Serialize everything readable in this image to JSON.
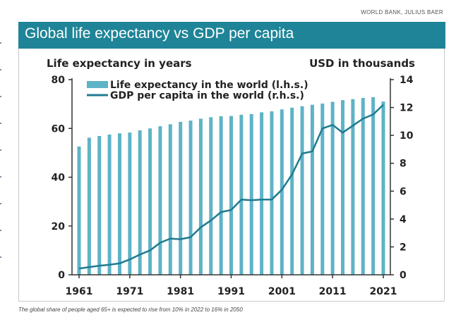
{
  "source": "WORLD BANK, JULIUS BAER",
  "header": {
    "title": "Global life expectancy vs GDP per capita"
  },
  "caption": "The global share of people aged 65+ is expected to rise from 10% in 2022 to 16% in 2050",
  "colors": {
    "banner": "#1f8497",
    "bars": "#5fb3c6",
    "line": "#1f7b91"
  },
  "chart_data": {
    "type": "bar",
    "title": "",
    "ylabel_left": "Life expectancy in years",
    "ylabel_right": "USD in thousands",
    "x": [
      1961,
      1963,
      1965,
      1967,
      1969,
      1971,
      1973,
      1975,
      1977,
      1979,
      1981,
      1983,
      1985,
      1987,
      1989,
      1991,
      1993,
      1995,
      1997,
      1999,
      2001,
      2003,
      2005,
      2007,
      2009,
      2011,
      2013,
      2015,
      2017,
      2019,
      2021
    ],
    "xticks": [
      "1961",
      "1971",
      "1981",
      "1991",
      "2001",
      "2011",
      "2021"
    ],
    "ylim_left": [
      0,
      80
    ],
    "yticks_left": [
      "0",
      "20",
      "40",
      "60",
      "80"
    ],
    "ylim_right": [
      0,
      14
    ],
    "yticks_right": [
      "0",
      "2",
      "4",
      "6",
      "8",
      "10",
      "12",
      "14"
    ],
    "legend_position": "top-left",
    "grid": false,
    "series": [
      {
        "name": "Life expectancy in the world (l.h.s.)",
        "axis": "left",
        "type": "bar",
        "values": [
          52.6,
          56.2,
          56.9,
          57.5,
          58.0,
          58.3,
          59.2,
          60.0,
          60.9,
          61.7,
          62.7,
          63.2,
          64.0,
          64.6,
          65.0,
          65.1,
          65.6,
          65.9,
          66.6,
          67.0,
          67.8,
          68.5,
          69.1,
          69.7,
          70.2,
          70.9,
          71.6,
          72.0,
          72.5,
          72.8,
          71.0
        ]
      },
      {
        "name": "GDP per capita in the world (r.h.s.)",
        "axis": "right",
        "type": "line",
        "values": [
          0.45,
          0.55,
          0.65,
          0.72,
          0.82,
          1.1,
          1.45,
          1.75,
          2.3,
          2.6,
          2.55,
          2.7,
          3.4,
          3.9,
          4.5,
          4.65,
          5.4,
          5.35,
          5.4,
          5.4,
          6.1,
          7.2,
          8.7,
          8.85,
          10.5,
          10.75,
          10.2,
          10.7,
          11.2,
          11.5,
          12.2
        ]
      }
    ]
  }
}
